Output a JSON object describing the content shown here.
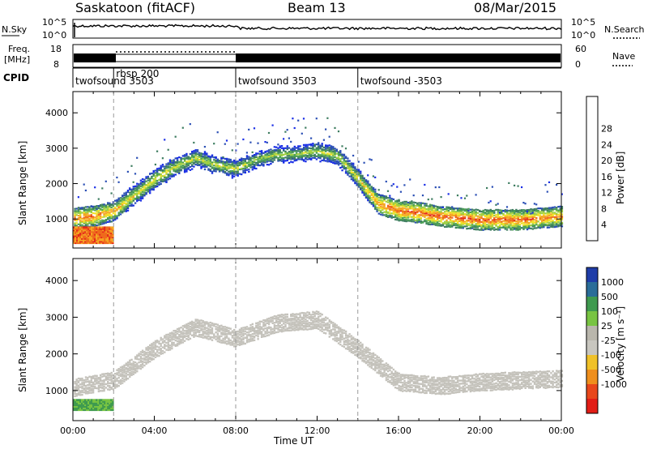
{
  "header": {
    "title": "Saskatoon (fitACF)",
    "beam": "Beam 13",
    "date": "08/Mar/2015"
  },
  "noise_panel": {
    "left_label": "N.Sky",
    "right_label": "N.Search",
    "left_ticks": [
      "10^5",
      "10^0"
    ],
    "right_ticks": [
      "10^5",
      "10^0"
    ]
  },
  "freq_panel": {
    "left_label_line1": "Freq.",
    "left_label_line2": "[MHz]",
    "right_label": "Nave",
    "left_ticks": [
      "18",
      "8"
    ],
    "right_ticks": [
      "60",
      "0"
    ]
  },
  "cpid": {
    "label": "CPID",
    "segments": [
      {
        "name": "twofsound 3503",
        "start": 0,
        "end": 2
      },
      {
        "name": "rbsp 200",
        "start": 2,
        "end": 8
      },
      {
        "name": "twofsound 3503",
        "start": 8,
        "end": 14
      },
      {
        "name": "twofsound -3503",
        "start": 14,
        "end": 24
      }
    ]
  },
  "colors": {
    "power": [
      "#1a2ee6",
      "#2b4fb5",
      "#3e7d60",
      "#4c9f55",
      "#9fcf43",
      "#f2e026",
      "#f5a623",
      "#ef6a1c",
      "#e4261c"
    ],
    "velocity": [
      "#1f3da8",
      "#2a6d99",
      "#3f9a4f",
      "#78c442",
      "#b9b6ac",
      "#c8c6bf",
      "#f0c128",
      "#ef8f1d",
      "#e8471b",
      "#e21d16"
    ],
    "grey_scatter": "#c4c2bb"
  },
  "chart_data": [
    {
      "type": "heatmap",
      "title": "Power",
      "xlabel": "Time UT",
      "ylabel": "Slant Range [km]",
      "xlim": [
        0,
        24
      ],
      "ylim": [
        180,
        4600
      ],
      "x_ticks": [
        "00:00",
        "04:00",
        "08:00",
        "12:00",
        "16:00",
        "20:00",
        "00:00"
      ],
      "y_ticks": [
        1000,
        2000,
        3000,
        4000
      ],
      "colorbar": {
        "label": "Power [dB]",
        "ticks": [
          "4",
          "8",
          "12",
          "16",
          "20",
          "24",
          "28"
        ],
        "range": [
          0,
          32
        ]
      },
      "main_echo_band": {
        "time_hours": [
          0,
          1,
          2,
          3,
          4,
          5,
          6,
          7,
          8,
          9,
          10,
          11,
          12,
          13,
          14,
          15,
          16,
          17,
          18,
          19,
          20,
          21,
          22,
          23,
          24
        ],
        "slant_range_km": [
          1050,
          1100,
          1250,
          1700,
          2150,
          2500,
          2750,
          2550,
          2450,
          2700,
          2850,
          2850,
          2950,
          2800,
          2150,
          1450,
          1250,
          1200,
          1100,
          1050,
          1000,
          1000,
          1000,
          1050,
          1100
        ],
        "peak_power_db": [
          26,
          27,
          24,
          20,
          20,
          18,
          18,
          18,
          18,
          16,
          16,
          16,
          18,
          18,
          20,
          26,
          28,
          28,
          28,
          28,
          28,
          28,
          28,
          26,
          26
        ]
      },
      "near_range_patch": {
        "time_hours": [
          0,
          2
        ],
        "slant_range_km": [
          350,
          800
        ],
        "peak_power_db": 30
      },
      "cpid_boundaries_hours": [
        2,
        8,
        14
      ]
    },
    {
      "type": "heatmap",
      "title": "Velocity",
      "xlabel": "Time UT",
      "ylabel": "Slant Range [km]",
      "xlim": [
        0,
        24
      ],
      "ylim": [
        180,
        4600
      ],
      "x_ticks": [
        "00:00",
        "04:00",
        "08:00",
        "12:00",
        "16:00",
        "20:00",
        "00:00"
      ],
      "y_ticks": [
        1000,
        2000,
        3000,
        4000
      ],
      "colorbar": {
        "label": "Velocity [m s⁻¹]",
        "ticks": [
          "1000",
          "500",
          "100",
          "25",
          "-25",
          "-100",
          "-500",
          "-1000"
        ]
      },
      "ground_scatter_band": {
        "time_hours": [
          0,
          2,
          4,
          6,
          8,
          10,
          12,
          14,
          16,
          18,
          20,
          22,
          24
        ],
        "slant_range_km": [
          1100,
          1300,
          2150,
          2750,
          2450,
          2850,
          2950,
          2150,
          1250,
          1150,
          1250,
          1300,
          1350
        ],
        "velocity_m_s": 0
      },
      "near_range_patch": {
        "time_hours": [
          0,
          2
        ],
        "slant_range_km": [
          500,
          800
        ],
        "velocity_m_s": 150
      },
      "cpid_boundaries_hours": [
        2,
        8,
        14
      ]
    }
  ]
}
